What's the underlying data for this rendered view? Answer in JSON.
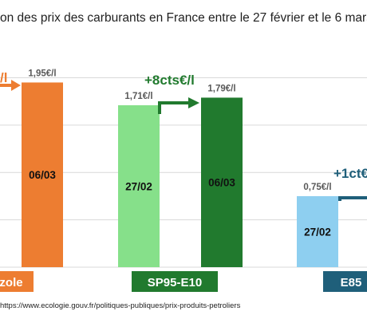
{
  "title": "on des prix des carburants en France entre le 27 février et le 6 mars",
  "source": "https://www.ecologie.gouv.fr/politiques-publiques/prix-produits-petroliers",
  "colors": {
    "gazole_new": "#ED7D31",
    "sp95_old": "#86E08A",
    "sp95_new": "#217A2E",
    "e85_old": "#8ECFF0",
    "e85_new": "#1F5F7A",
    "grid": "#D9D9D9",
    "value_label": "#595959"
  },
  "chart_data": {
    "type": "bar",
    "ylim": [
      0,
      2.4
    ],
    "grid": true,
    "categories": [
      "zole",
      "SP95-E10",
      "E85"
    ],
    "series": [
      {
        "name": "27/02",
        "values": [
          null,
          1.71,
          0.75
        ],
        "value_labels": [
          "",
          "1,71€/l",
          "0,75€/l"
        ],
        "bar_labels": [
          "",
          "27/02",
          "27/02"
        ]
      },
      {
        "name": "06/03",
        "values": [
          1.95,
          1.79,
          null
        ],
        "value_labels": [
          "1,95€/l",
          "1,79€/l",
          ""
        ],
        "bar_labels": [
          "06/03",
          "06/03",
          ""
        ]
      }
    ],
    "annotations": [
      {
        "category": "zole",
        "text": "/l",
        "color": "#ED7D31"
      },
      {
        "category": "SP95-E10",
        "text": "+8cts€/l",
        "color": "#217A2E"
      },
      {
        "category": "E85",
        "text": "+1ct€",
        "color": "#1F5F7A"
      }
    ]
  }
}
